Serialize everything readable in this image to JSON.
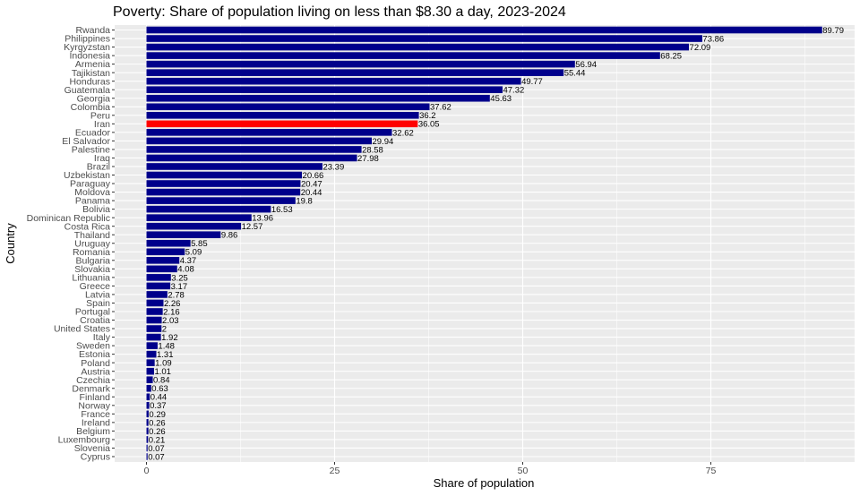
{
  "chart_data": {
    "type": "bar",
    "orientation": "horizontal",
    "title": "Poverty: Share of population living on less than $8.30 a day, 2023-2024",
    "xlabel": "Share of population",
    "ylabel": "Country",
    "xlim": [
      0,
      92
    ],
    "xticks": [
      0,
      25,
      50,
      75
    ],
    "grid": true,
    "colors": {
      "default": "#00008b",
      "highlight": "#ff0000",
      "panel": "#ebebeb",
      "grid": "#ffffff"
    },
    "highlight": "Iran",
    "bars": [
      {
        "label": "Rwanda",
        "value": 89.79,
        "value_text": "89.79"
      },
      {
        "label": "Philippines",
        "value": 73.86,
        "value_text": "73.86"
      },
      {
        "label": "Kyrgyzstan",
        "value": 72.09,
        "value_text": "72.09"
      },
      {
        "label": "Indonesia",
        "value": 68.25,
        "value_text": "68.25"
      },
      {
        "label": "Armenia",
        "value": 56.94,
        "value_text": "56.94"
      },
      {
        "label": "Tajikistan",
        "value": 55.44,
        "value_text": "55.44"
      },
      {
        "label": "Honduras",
        "value": 49.77,
        "value_text": "49.77"
      },
      {
        "label": "Guatemala",
        "value": 47.32,
        "value_text": "47.32"
      },
      {
        "label": "Georgia",
        "value": 45.63,
        "value_text": "45.63"
      },
      {
        "label": "Colombia",
        "value": 37.62,
        "value_text": "37.62"
      },
      {
        "label": "Peru",
        "value": 36.2,
        "value_text": "36.2"
      },
      {
        "label": "Iran",
        "value": 36.05,
        "value_text": "36.05"
      },
      {
        "label": "Ecuador",
        "value": 32.62,
        "value_text": "32.62"
      },
      {
        "label": "El Salvador",
        "value": 29.94,
        "value_text": "29.94"
      },
      {
        "label": "Palestine",
        "value": 28.58,
        "value_text": "28.58"
      },
      {
        "label": "Iraq",
        "value": 27.98,
        "value_text": "27.98"
      },
      {
        "label": "Brazil",
        "value": 23.39,
        "value_text": "23.39"
      },
      {
        "label": "Uzbekistan",
        "value": 20.66,
        "value_text": "20.66"
      },
      {
        "label": "Paraguay",
        "value": 20.47,
        "value_text": "20.47"
      },
      {
        "label": "Moldova",
        "value": 20.44,
        "value_text": "20.44"
      },
      {
        "label": "Panama",
        "value": 19.8,
        "value_text": "19.8"
      },
      {
        "label": "Bolivia",
        "value": 16.53,
        "value_text": "16.53"
      },
      {
        "label": "Dominican Republic",
        "value": 13.96,
        "value_text": "13.96"
      },
      {
        "label": "Costa Rica",
        "value": 12.57,
        "value_text": "12.57"
      },
      {
        "label": "Thailand",
        "value": 9.86,
        "value_text": "9.86"
      },
      {
        "label": "Uruguay",
        "value": 5.85,
        "value_text": "5.85"
      },
      {
        "label": "Romania",
        "value": 5.09,
        "value_text": "5.09"
      },
      {
        "label": "Bulgaria",
        "value": 4.37,
        "value_text": "4.37"
      },
      {
        "label": "Slovakia",
        "value": 4.08,
        "value_text": "4.08"
      },
      {
        "label": "Lithuania",
        "value": 3.25,
        "value_text": "3.25"
      },
      {
        "label": "Greece",
        "value": 3.17,
        "value_text": "3.17"
      },
      {
        "label": "Latvia",
        "value": 2.78,
        "value_text": "2.78"
      },
      {
        "label": "Spain",
        "value": 2.26,
        "value_text": "2.26"
      },
      {
        "label": "Portugal",
        "value": 2.16,
        "value_text": "2.16"
      },
      {
        "label": "Croatia",
        "value": 2.03,
        "value_text": "2.03"
      },
      {
        "label": "United States",
        "value": 2,
        "value_text": "2"
      },
      {
        "label": "Italy",
        "value": 1.92,
        "value_text": "1.92"
      },
      {
        "label": "Sweden",
        "value": 1.48,
        "value_text": "1.48"
      },
      {
        "label": "Estonia",
        "value": 1.31,
        "value_text": "1.31"
      },
      {
        "label": "Poland",
        "value": 1.09,
        "value_text": "1.09"
      },
      {
        "label": "Austria",
        "value": 1.01,
        "value_text": "1.01"
      },
      {
        "label": "Czechia",
        "value": 0.84,
        "value_text": "0.84"
      },
      {
        "label": "Denmark",
        "value": 0.63,
        "value_text": "0.63"
      },
      {
        "label": "Finland",
        "value": 0.44,
        "value_text": "0.44"
      },
      {
        "label": "Norway",
        "value": 0.37,
        "value_text": "0.37"
      },
      {
        "label": "France",
        "value": 0.29,
        "value_text": "0.29"
      },
      {
        "label": "Ireland",
        "value": 0.26,
        "value_text": "0.26"
      },
      {
        "label": "Belgium",
        "value": 0.26,
        "value_text": "0.26"
      },
      {
        "label": "Luxembourg",
        "value": 0.21,
        "value_text": "0.21"
      },
      {
        "label": "Slovenia",
        "value": 0.07,
        "value_text": "0.07"
      },
      {
        "label": "Cyprus",
        "value": 0.07,
        "value_text": "0.07"
      }
    ]
  }
}
